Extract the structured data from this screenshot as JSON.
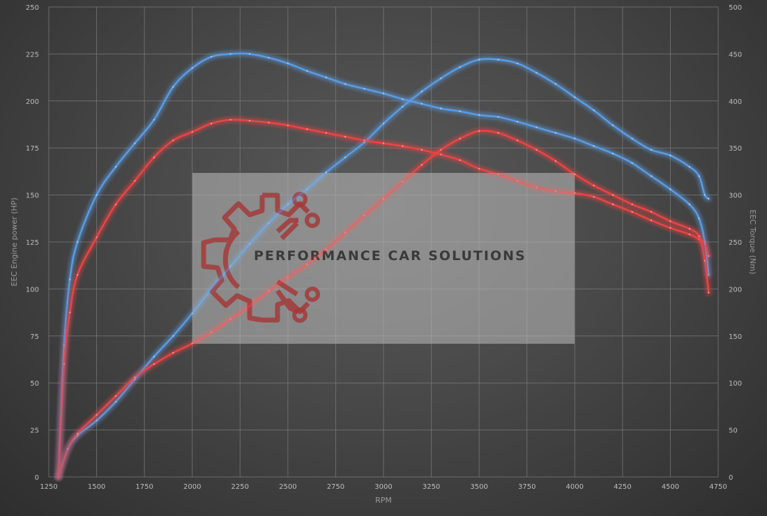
{
  "logo": {
    "text": "PERFORMANCE CAR SOLUTIONS"
  },
  "colors": {
    "blue": "#5b9be0",
    "red": "#e84545",
    "logo": "#a43a3a"
  },
  "chart_data": {
    "type": "line",
    "xlabel": "RPM",
    "ylabel_left": "EEC Engine power (HP)",
    "ylabel_right": "EEC Torque (Nm)",
    "xlim": [
      1250,
      4750
    ],
    "ylim_left": [
      0,
      250
    ],
    "ylim_right": [
      0,
      500
    ],
    "x_ticks": [
      1250,
      1500,
      1750,
      2000,
      2250,
      2500,
      2750,
      3000,
      3250,
      3500,
      3750,
      4000,
      4250,
      4500,
      4750
    ],
    "y_ticks_left": [
      0,
      25,
      50,
      75,
      100,
      125,
      150,
      175,
      200,
      225,
      250
    ],
    "y_ticks_right": [
      0,
      50,
      100,
      150,
      200,
      250,
      300,
      350,
      400,
      450,
      500
    ],
    "grid": true,
    "series": [
      {
        "axis": "right",
        "color": "blue",
        "x": [
          1300,
          1330,
          1360,
          1400,
          1500,
          1600,
          1700,
          1800,
          1900,
          2000,
          2100,
          2200,
          2300,
          2400,
          2500,
          2600,
          2700,
          2800,
          2900,
          3000,
          3100,
          3200,
          3300,
          3400,
          3500,
          3600,
          3700,
          3800,
          3900,
          4000,
          4100,
          4200,
          4300,
          4400,
          4500,
          4600,
          4650,
          4680,
          4700
        ],
        "y": [
          0,
          140,
          210,
          250,
          300,
          330,
          355,
          380,
          415,
          435,
          447,
          450,
          450,
          446,
          440,
          432,
          425,
          418,
          413,
          408,
          402,
          397,
          392,
          389,
          385,
          383,
          378,
          372,
          366,
          360,
          352,
          344,
          334,
          320,
          306,
          290,
          275,
          250,
          215
        ]
      },
      {
        "axis": "left",
        "color": "blue",
        "x": [
          1300,
          1350,
          1400,
          1500,
          1600,
          1700,
          1800,
          1900,
          2000,
          2100,
          2200,
          2300,
          2400,
          2500,
          2600,
          2700,
          2800,
          2900,
          3000,
          3100,
          3200,
          3300,
          3400,
          3500,
          3600,
          3700,
          3800,
          3900,
          4000,
          4100,
          4200,
          4300,
          4400,
          4500,
          4600,
          4650,
          4680,
          4700
        ],
        "y": [
          0,
          15,
          22,
          30,
          40,
          52,
          64,
          75,
          87,
          100,
          112,
          124,
          135,
          145,
          153,
          162,
          170,
          178,
          188,
          197,
          205,
          212,
          218,
          222,
          222,
          220,
          215,
          209,
          202,
          195,
          187,
          180,
          174,
          171,
          165,
          160,
          150,
          148
        ]
      },
      {
        "axis": "right",
        "color": "red",
        "x": [
          1300,
          1330,
          1360,
          1400,
          1500,
          1600,
          1700,
          1800,
          1900,
          2000,
          2100,
          2200,
          2300,
          2400,
          2500,
          2600,
          2700,
          2800,
          2900,
          3000,
          3100,
          3200,
          3300,
          3400,
          3500,
          3600,
          3700,
          3800,
          3900,
          4000,
          4100,
          4200,
          4300,
          4400,
          4500,
          4600,
          4650,
          4680,
          4700
        ],
        "y": [
          0,
          120,
          175,
          215,
          255,
          290,
          315,
          340,
          358,
          367,
          376,
          380,
          379,
          377,
          374,
          370,
          366,
          362,
          358,
          355,
          352,
          348,
          343,
          337,
          328,
          322,
          315,
          308,
          304,
          302,
          298,
          290,
          282,
          273,
          265,
          258,
          253,
          248,
          235
        ]
      },
      {
        "axis": "left",
        "color": "red",
        "x": [
          1300,
          1350,
          1400,
          1500,
          1600,
          1700,
          1800,
          1900,
          2000,
          2100,
          2200,
          2300,
          2400,
          2500,
          2600,
          2700,
          2800,
          2900,
          3000,
          3100,
          3200,
          3300,
          3400,
          3500,
          3600,
          3700,
          3800,
          3900,
          4000,
          4100,
          4200,
          4300,
          4400,
          4500,
          4600,
          4650,
          4680,
          4700
        ],
        "y": [
          0,
          15,
          23,
          33,
          43,
          53,
          60,
          66,
          71,
          77,
          84,
          91,
          99,
          106,
          113,
          121,
          130,
          139,
          148,
          157,
          166,
          174,
          180,
          184,
          183,
          179,
          174,
          168,
          161,
          155,
          150,
          145,
          141,
          136,
          132,
          128,
          115,
          98
        ]
      }
    ]
  }
}
